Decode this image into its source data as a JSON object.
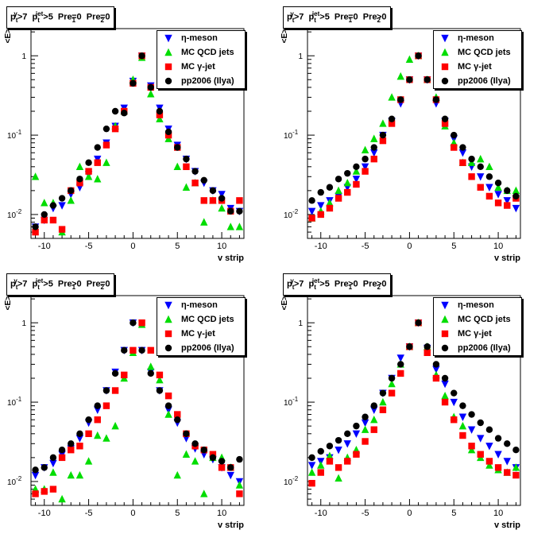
{
  "chart_data": [
    {
      "type": "scatter",
      "title": {
        "pt_gamma": "p",
        "sup1": "γ",
        "sub1": "t",
        "gt1": ">7",
        "pt_jet": "p",
        "sup2": "jet",
        "sub2": "t",
        "gt2": ">5",
        "pre1": "Pre",
        "pre1_sub": "1",
        "pre1_cond": "=0",
        "pre2": "Pre",
        "pre2_sub": "2",
        "pre2_cond": "=0"
      },
      "xlabel": "v strip",
      "ylabel": "<E>",
      "xlim": [
        -11.5,
        12.5
      ],
      "ylim": [
        0.005,
        2.2
      ],
      "yscale": "log",
      "legend_position": "top-right",
      "x": [
        -11,
        -10,
        -9,
        -8,
        -7,
        -6,
        -5,
        -4,
        -3,
        -2,
        -1,
        0,
        1,
        2,
        3,
        4,
        5,
        6,
        7,
        8,
        9,
        10,
        11,
        12
      ],
      "series": [
        {
          "name": "η-meson",
          "marker": "triangle-down",
          "color": "#0000ff",
          "values": [
            0.007,
            0.0085,
            0.012,
            0.013,
            0.018,
            0.022,
            0.032,
            0.05,
            0.08,
            0.13,
            0.22,
            0.48,
            1.0,
            0.42,
            0.22,
            0.12,
            0.075,
            0.05,
            0.035,
            0.025,
            0.02,
            0.018,
            0.012,
            0.011
          ]
        },
        {
          "name": "MC QCD jets",
          "marker": "triangle-up",
          "color": "#00dd00",
          "values": [
            0.03,
            0.014,
            0.014,
            0.006,
            0.015,
            0.04,
            0.03,
            0.028,
            0.045,
            0.13,
            0.2,
            0.5,
            0.95,
            0.33,
            0.16,
            0.09,
            0.04,
            0.022,
            0.025,
            0.008,
            0.015,
            0.012,
            0.007,
            0.007
          ]
        },
        {
          "name": "MC γ-jet",
          "marker": "square",
          "color": "#ff0000",
          "values": [
            0.006,
            0.0085,
            0.0085,
            0.0065,
            0.02,
            0.025,
            0.035,
            0.045,
            0.075,
            0.12,
            0.2,
            0.45,
            1.0,
            0.4,
            0.18,
            0.1,
            0.07,
            0.04,
            0.025,
            0.015,
            0.015,
            0.015,
            0.011,
            0.015
          ]
        },
        {
          "name": "pp2006 (Ilya)",
          "marker": "circle",
          "color": "#000000",
          "values": [
            0.007,
            0.01,
            0.013,
            0.016,
            0.02,
            0.028,
            0.045,
            0.07,
            0.12,
            0.2,
            0.19,
            0.45,
            1.0,
            0.4,
            0.2,
            0.11,
            0.07,
            0.05,
            0.035,
            0.027,
            0.02,
            0.016,
            0.011,
            0.011
          ]
        }
      ]
    },
    {
      "type": "scatter",
      "title": {
        "pt_gamma": "p",
        "sup1": "γ",
        "sub1": "t",
        "gt1": ">7",
        "pt_jet": "p",
        "sup2": "jet",
        "sub2": "t",
        "gt2": ">5",
        "pre1": "Pre",
        "pre1_sub": "1",
        "pre1_cond": "=0",
        "pre2": "Pre",
        "pre2_sub": "2",
        "pre2_cond": ">0"
      },
      "xlabel": "v strip",
      "ylabel": "<E>",
      "xlim": [
        -11.5,
        12.5
      ],
      "ylim": [
        0.005,
        2.2
      ],
      "yscale": "log",
      "legend_position": "top-right",
      "x": [
        -11,
        -10,
        -9,
        -8,
        -7,
        -6,
        -5,
        -4,
        -3,
        -2,
        -1,
        0,
        1,
        2,
        3,
        4,
        5,
        6,
        7,
        8,
        9,
        10,
        11,
        12
      ],
      "series": [
        {
          "name": "η-meson",
          "marker": "triangle-down",
          "color": "#0000ff",
          "values": [
            0.011,
            0.013,
            0.015,
            0.017,
            0.022,
            0.028,
            0.04,
            0.06,
            0.1,
            0.15,
            0.25,
            0.5,
            1.0,
            0.5,
            0.25,
            0.15,
            0.09,
            0.06,
            0.04,
            0.03,
            0.022,
            0.018,
            0.015,
            0.012
          ]
        },
        {
          "name": "MC QCD jets",
          "marker": "triangle-up",
          "color": "#00dd00",
          "values": [
            0.009,
            0.011,
            0.014,
            0.02,
            0.025,
            0.035,
            0.065,
            0.09,
            0.14,
            0.3,
            0.55,
            0.9,
            1.0,
            0.5,
            0.3,
            0.13,
            0.08,
            0.045,
            0.045,
            0.05,
            0.04,
            0.022,
            0.02,
            0.02
          ]
        },
        {
          "name": "MC γ-jet",
          "marker": "square",
          "color": "#ff0000",
          "values": [
            0.009,
            0.01,
            0.012,
            0.016,
            0.019,
            0.024,
            0.035,
            0.05,
            0.085,
            0.14,
            0.28,
            0.5,
            1.0,
            0.5,
            0.28,
            0.14,
            0.07,
            0.045,
            0.03,
            0.022,
            0.017,
            0.014,
            0.013,
            0.016
          ]
        },
        {
          "name": "pp2006 (Ilya)",
          "marker": "circle",
          "color": "#000000",
          "values": [
            0.015,
            0.019,
            0.022,
            0.028,
            0.033,
            0.04,
            0.05,
            0.07,
            0.1,
            0.16,
            0.28,
            0.5,
            1.0,
            0.5,
            0.28,
            0.16,
            0.1,
            0.07,
            0.05,
            0.04,
            0.03,
            0.025,
            0.02,
            0.017
          ]
        }
      ]
    },
    {
      "type": "scatter",
      "title": {
        "pt_gamma": "p",
        "sup1": "γ",
        "sub1": "t",
        "gt1": ">7",
        "pt_jet": "p",
        "sup2": "jet",
        "sub2": "t",
        "gt2": ">5",
        "pre1": "Pre",
        "pre1_sub": "1",
        "pre1_cond": ">0",
        "pre2": "Pre",
        "pre2_sub": "2",
        "pre2_cond": "=0"
      },
      "xlabel": "v strip",
      "ylabel": "<E>",
      "xlim": [
        -11.5,
        12.5
      ],
      "ylim": [
        0.005,
        2.2
      ],
      "yscale": "log",
      "legend_position": "top-right",
      "x": [
        -11,
        -10,
        -9,
        -8,
        -7,
        -6,
        -5,
        -4,
        -3,
        -2,
        -1,
        0,
        1,
        2,
        3,
        4,
        5,
        6,
        7,
        8,
        9,
        10,
        11,
        12
      ],
      "series": [
        {
          "name": "η-meson",
          "marker": "triangle-down",
          "color": "#0000ff",
          "values": [
            0.012,
            0.015,
            0.017,
            0.022,
            0.026,
            0.035,
            0.055,
            0.08,
            0.14,
            0.24,
            0.45,
            1.0,
            0.45,
            0.24,
            0.14,
            0.08,
            0.055,
            0.035,
            0.026,
            0.022,
            0.019,
            0.015,
            0.012,
            0.01
          ]
        },
        {
          "name": "MC QCD jets",
          "marker": "triangle-up",
          "color": "#00dd00",
          "values": [
            0.008,
            0.008,
            0.013,
            0.006,
            0.012,
            0.012,
            0.018,
            0.038,
            0.035,
            0.05,
            0.2,
            0.42,
            0.95,
            0.28,
            0.19,
            0.07,
            0.012,
            0.022,
            0.018,
            0.007,
            0.02,
            0.02,
            0.015,
            0.009
          ]
        },
        {
          "name": "MC γ-jet",
          "marker": "square",
          "color": "#ff0000",
          "values": [
            0.007,
            0.0075,
            0.008,
            0.02,
            0.025,
            0.028,
            0.04,
            0.06,
            0.09,
            0.14,
            0.22,
            0.45,
            1.0,
            0.45,
            0.22,
            0.12,
            0.07,
            0.04,
            0.028,
            0.025,
            0.022,
            0.015,
            0.015,
            0.007
          ]
        },
        {
          "name": "pp2006 (Ilya)",
          "marker": "circle",
          "color": "#000000",
          "values": [
            0.014,
            0.015,
            0.02,
            0.025,
            0.03,
            0.04,
            0.06,
            0.09,
            0.14,
            0.23,
            0.45,
            1.0,
            0.45,
            0.23,
            0.14,
            0.09,
            0.06,
            0.04,
            0.03,
            0.025,
            0.02,
            0.018,
            0.015,
            0.019
          ]
        }
      ]
    },
    {
      "type": "scatter",
      "title": {
        "pt_gamma": "p",
        "sup1": "γ",
        "sub1": "t",
        "gt1": ">7",
        "pt_jet": "p",
        "sup2": "jet",
        "sub2": "t",
        "gt2": ">5",
        "pre1": "Pre",
        "pre1_sub": "1",
        "pre1_cond": ">0",
        "pre2": "Pre",
        "pre2_sub": "2",
        "pre2_cond": ">0"
      },
      "xlabel": "v strip",
      "ylabel": "<E>",
      "xlim": [
        -11.5,
        12.5
      ],
      "ylim": [
        0.005,
        2.2
      ],
      "yscale": "log",
      "legend_position": "top-right",
      "x": [
        -11,
        -10,
        -9,
        -8,
        -7,
        -6,
        -5,
        -4,
        -3,
        -2,
        -1,
        0,
        1,
        2,
        3,
        4,
        5,
        6,
        7,
        8,
        9,
        10,
        11,
        12
      ],
      "series": [
        {
          "name": "η-meson",
          "marker": "triangle-down",
          "color": "#0000ff",
          "values": [
            0.016,
            0.018,
            0.02,
            0.025,
            0.03,
            0.04,
            0.055,
            0.08,
            0.13,
            0.2,
            0.36,
            0.5,
            1.0,
            0.48,
            0.26,
            0.17,
            0.1,
            0.065,
            0.045,
            0.035,
            0.028,
            0.022,
            0.018,
            0.015
          ]
        },
        {
          "name": "MC QCD jets",
          "marker": "triangle-up",
          "color": "#00dd00",
          "values": [
            0.013,
            0.016,
            0.021,
            0.011,
            0.02,
            0.025,
            0.045,
            0.06,
            0.1,
            0.17,
            0.3,
            0.5,
            1.0,
            0.5,
            0.22,
            0.12,
            0.065,
            0.05,
            0.025,
            0.02,
            0.016,
            0.014,
            0.013,
            0.015
          ]
        },
        {
          "name": "MC γ-jet",
          "marker": "square",
          "color": "#ff0000",
          "values": [
            0.0095,
            0.013,
            0.018,
            0.015,
            0.018,
            0.022,
            0.032,
            0.045,
            0.08,
            0.13,
            0.23,
            0.5,
            1.0,
            0.42,
            0.2,
            0.1,
            0.06,
            0.038,
            0.028,
            0.022,
            0.018,
            0.015,
            0.013,
            0.012
          ]
        },
        {
          "name": "pp2006 (Ilya)",
          "marker": "circle",
          "color": "#000000",
          "values": [
            0.02,
            0.024,
            0.028,
            0.033,
            0.04,
            0.05,
            0.065,
            0.09,
            0.13,
            0.2,
            0.3,
            0.5,
            1.0,
            0.5,
            0.3,
            0.2,
            0.13,
            0.09,
            0.07,
            0.055,
            0.045,
            0.035,
            0.03,
            0.025
          ]
        }
      ]
    }
  ],
  "axis": {
    "x_ticks": [
      "-10",
      "-5",
      "0",
      "5",
      "10"
    ],
    "y_ticks": [
      {
        "base": "10",
        "exp": "-2"
      },
      {
        "base": "10",
        "exp": "-1"
      },
      {
        "base": "1",
        "exp": ""
      }
    ]
  }
}
